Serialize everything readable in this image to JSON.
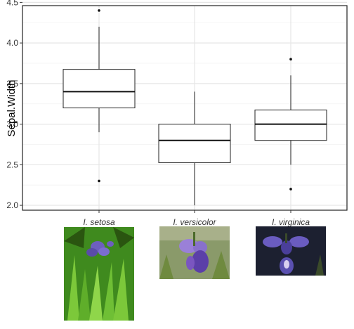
{
  "chart_data": {
    "type": "box",
    "title": "",
    "xlabel": "",
    "ylabel": "Sepal.Width",
    "ylim": [
      1.94,
      4.46
    ],
    "yticks": [
      "2.0",
      "2.5",
      "3.0",
      "3.5",
      "4.0",
      "4.5"
    ],
    "ytick_values": [
      2.0,
      2.5,
      3.0,
      3.5,
      4.0,
      4.5
    ],
    "grid": true,
    "categories": [
      "I. setosa",
      "I. versicolor",
      "I. virginica"
    ],
    "boxes": [
      {
        "q1": 3.2,
        "median": 3.4,
        "q3": 3.675,
        "whisker_low": 2.9,
        "whisker_high": 4.2,
        "outliers": [
          4.4,
          2.3
        ]
      },
      {
        "q1": 2.525,
        "median": 2.8,
        "q3": 3.0,
        "whisker_low": 2.0,
        "whisker_high": 3.4,
        "outliers": []
      },
      {
        "q1": 2.8,
        "median": 3.0,
        "q3": 3.175,
        "whisker_low": 2.5,
        "whisker_high": 3.6,
        "outliers": [
          3.8,
          2.2
        ]
      }
    ],
    "category_images": [
      {
        "name": "setosa-photo-icon",
        "colors": {
          "bg": "#3f8a1e",
          "leaf": "#7cc83a",
          "petal": "#6d5fbf",
          "dark": "#2a5510"
        }
      },
      {
        "name": "versicolor-photo-icon",
        "colors": {
          "bg": "#8a9a6a",
          "leaf": "#6f8a3f",
          "petal": "#7a56c0",
          "dark": "#4b3b88"
        }
      },
      {
        "name": "virginica-photo-icon",
        "colors": {
          "bg": "#1c2030",
          "leaf": "#3a4a2a",
          "petal": "#5a50b0",
          "dark": "#2a2850"
        }
      }
    ]
  }
}
